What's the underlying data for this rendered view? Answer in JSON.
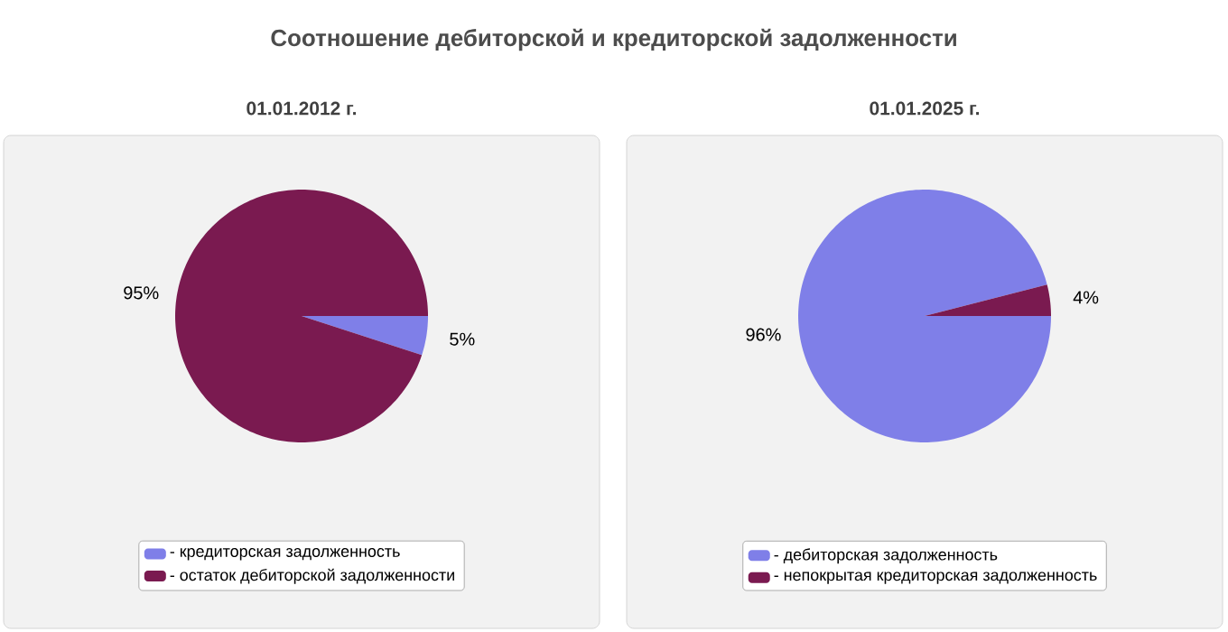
{
  "chart_data": [
    {
      "type": "pie",
      "title": "Соотношение дебиторской и кредиторской задолженности",
      "subtitle": "01.01.2012 г.",
      "categories": [
        "- кредиторская задолженность",
        "- остаток дебиторской задолженности"
      ],
      "values": [
        5,
        95
      ],
      "value_labels": [
        "5%",
        "95%"
      ],
      "colors": [
        "#7f7fe8",
        "#7a1a50"
      ],
      "legend": "bottom"
    },
    {
      "type": "pie",
      "subtitle": "01.01.2025 г.",
      "categories": [
        "- дебиторская задолженность",
        "- непокрытая кредиторская задолженность"
      ],
      "values": [
        96,
        4
      ],
      "value_labels": [
        "96%",
        "4%"
      ],
      "colors": [
        "#7f7fe8",
        "#7a1a50"
      ],
      "legend": "bottom"
    }
  ]
}
